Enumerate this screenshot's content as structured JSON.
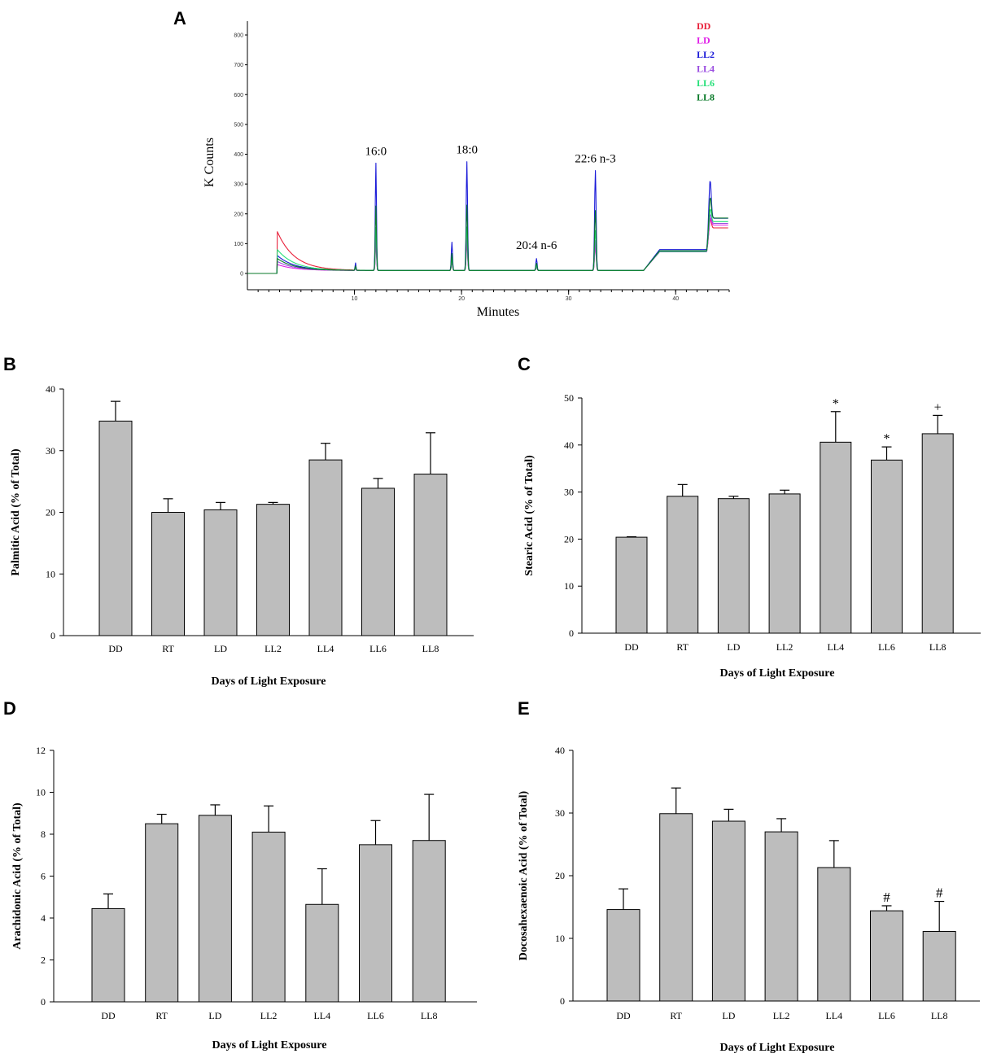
{
  "chart_data": [
    {
      "panel": "A",
      "type": "line",
      "ylabel": "K Counts",
      "xlabel": "Minutes",
      "xlim": [
        0,
        45
      ],
      "ylim": [
        0,
        800
      ],
      "xticks": [
        10,
        20,
        30,
        40
      ],
      "yticks": [
        0,
        100,
        200,
        300,
        400,
        500,
        600,
        700,
        800
      ],
      "legend": [
        {
          "name": "DD",
          "color": "#e8203a"
        },
        {
          "name": "LD",
          "color": "#e020e8"
        },
        {
          "name": "LL2",
          "color": "#1a1ad8"
        },
        {
          "name": "LL4",
          "color": "#9a4de0"
        },
        {
          "name": "LL6",
          "color": "#28e07a"
        },
        {
          "name": "LL8",
          "color": "#0a7a2a"
        }
      ],
      "annotations": [
        {
          "text": "16:0",
          "x": 12,
          "y": 370
        },
        {
          "text": "18:0",
          "x": 20.5,
          "y": 375
        },
        {
          "text": "20:4 n-6",
          "x": 27,
          "y": 55
        },
        {
          "text": "22:6 n-3",
          "x": 32.5,
          "y": 345
        }
      ],
      "series": [
        {
          "name": "DD",
          "color": "#e8203a",
          "scale": 0.28,
          "base_start": 140,
          "tail": 150
        },
        {
          "name": "LD",
          "color": "#e020e8",
          "scale": 0.25,
          "base_start": 30,
          "tail": 160
        },
        {
          "name": "LL2",
          "color": "#1a1ad8",
          "scale": 1.0,
          "base_start": 60,
          "tail": 175
        },
        {
          "name": "LL4",
          "color": "#9a4de0",
          "scale": 0.3,
          "base_start": 40,
          "tail": 165
        },
        {
          "name": "LL6",
          "color": "#28e07a",
          "scale": 0.4,
          "base_start": 80,
          "tail": 170
        },
        {
          "name": "LL8",
          "color": "#0a7a2a",
          "scale": 0.6,
          "base_start": 50,
          "tail": 180
        }
      ]
    },
    {
      "panel": "B",
      "type": "bar",
      "ylabel": "Palmitic Acid (% of Total)",
      "xlabel": "Days of Light Exposure",
      "categories": [
        "DD",
        "RT",
        "LD",
        "LL2",
        "LL4",
        "LL6",
        "LL8"
      ],
      "values": [
        34.8,
        20.0,
        20.4,
        21.3,
        28.5,
        23.9,
        26.2
      ],
      "errors": [
        3.2,
        2.2,
        1.2,
        0.3,
        2.7,
        1.6,
        6.7
      ],
      "markers": [
        "",
        "",
        "",
        "",
        "",
        "",
        ""
      ],
      "ylim": [
        0,
        40
      ],
      "yticks": [
        0,
        10,
        20,
        30,
        40
      ]
    },
    {
      "panel": "C",
      "type": "bar",
      "ylabel": "Stearic Acid (% of Total)",
      "xlabel": "Days of Light Exposure",
      "categories": [
        "DD",
        "RT",
        "LD",
        "LL2",
        "LL4",
        "LL6",
        "LL8"
      ],
      "values": [
        20.4,
        29.1,
        28.6,
        29.6,
        40.6,
        36.8,
        42.4
      ],
      "errors": [
        0.1,
        2.5,
        0.5,
        0.8,
        6.5,
        2.8,
        3.9
      ],
      "markers": [
        "",
        "",
        "",
        "",
        "*",
        "*",
        "+"
      ],
      "ylim": [
        0,
        50
      ],
      "yticks": [
        0,
        10,
        20,
        30,
        40,
        50
      ]
    },
    {
      "panel": "D",
      "type": "bar",
      "ylabel": "Arachidonic Acid (% of Total)",
      "xlabel": "Days of Light Exposure",
      "categories": [
        "DD",
        "RT",
        "LD",
        "LL2",
        "LL4",
        "LL6",
        "LL8"
      ],
      "values": [
        4.45,
        8.5,
        8.9,
        8.1,
        4.65,
        7.5,
        7.7
      ],
      "errors": [
        0.7,
        0.45,
        0.5,
        1.25,
        1.7,
        1.15,
        2.2
      ],
      "markers": [
        "",
        "",
        "",
        "",
        "",
        "",
        ""
      ],
      "ylim": [
        0,
        12
      ],
      "yticks": [
        0,
        2,
        4,
        6,
        8,
        10,
        12
      ]
    },
    {
      "panel": "E",
      "type": "bar",
      "ylabel": "Docosahexaenoic Acid (% of Total)",
      "xlabel": "Days of Light Exposure",
      "categories": [
        "DD",
        "RT",
        "LD",
        "LL2",
        "LL4",
        "LL6",
        "LL8"
      ],
      "values": [
        14.6,
        29.9,
        28.7,
        27.0,
        21.3,
        14.4,
        11.1
      ],
      "errors": [
        3.3,
        4.1,
        1.9,
        2.1,
        4.3,
        0.8,
        4.8
      ],
      "markers": [
        "",
        "",
        "",
        "",
        "",
        "#",
        "#"
      ],
      "ylim": [
        0,
        40
      ],
      "yticks": [
        0,
        10,
        20,
        30,
        40
      ]
    }
  ]
}
